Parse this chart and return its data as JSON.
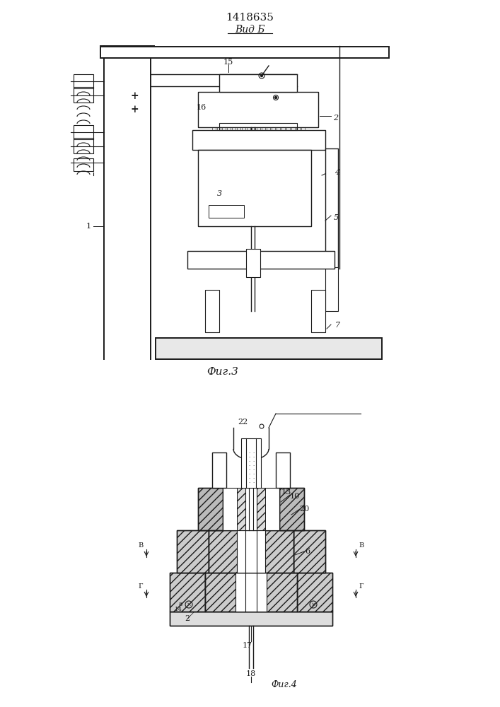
{
  "title": "1418635",
  "view_label": "Вид Б",
  "fig3_label": "Фиг.3",
  "fig4_label": "Фиг.4",
  "bg_color": "#ffffff",
  "line_color": "#1a1a1a",
  "annotation_fontsize": 8,
  "title_fontsize": 11
}
